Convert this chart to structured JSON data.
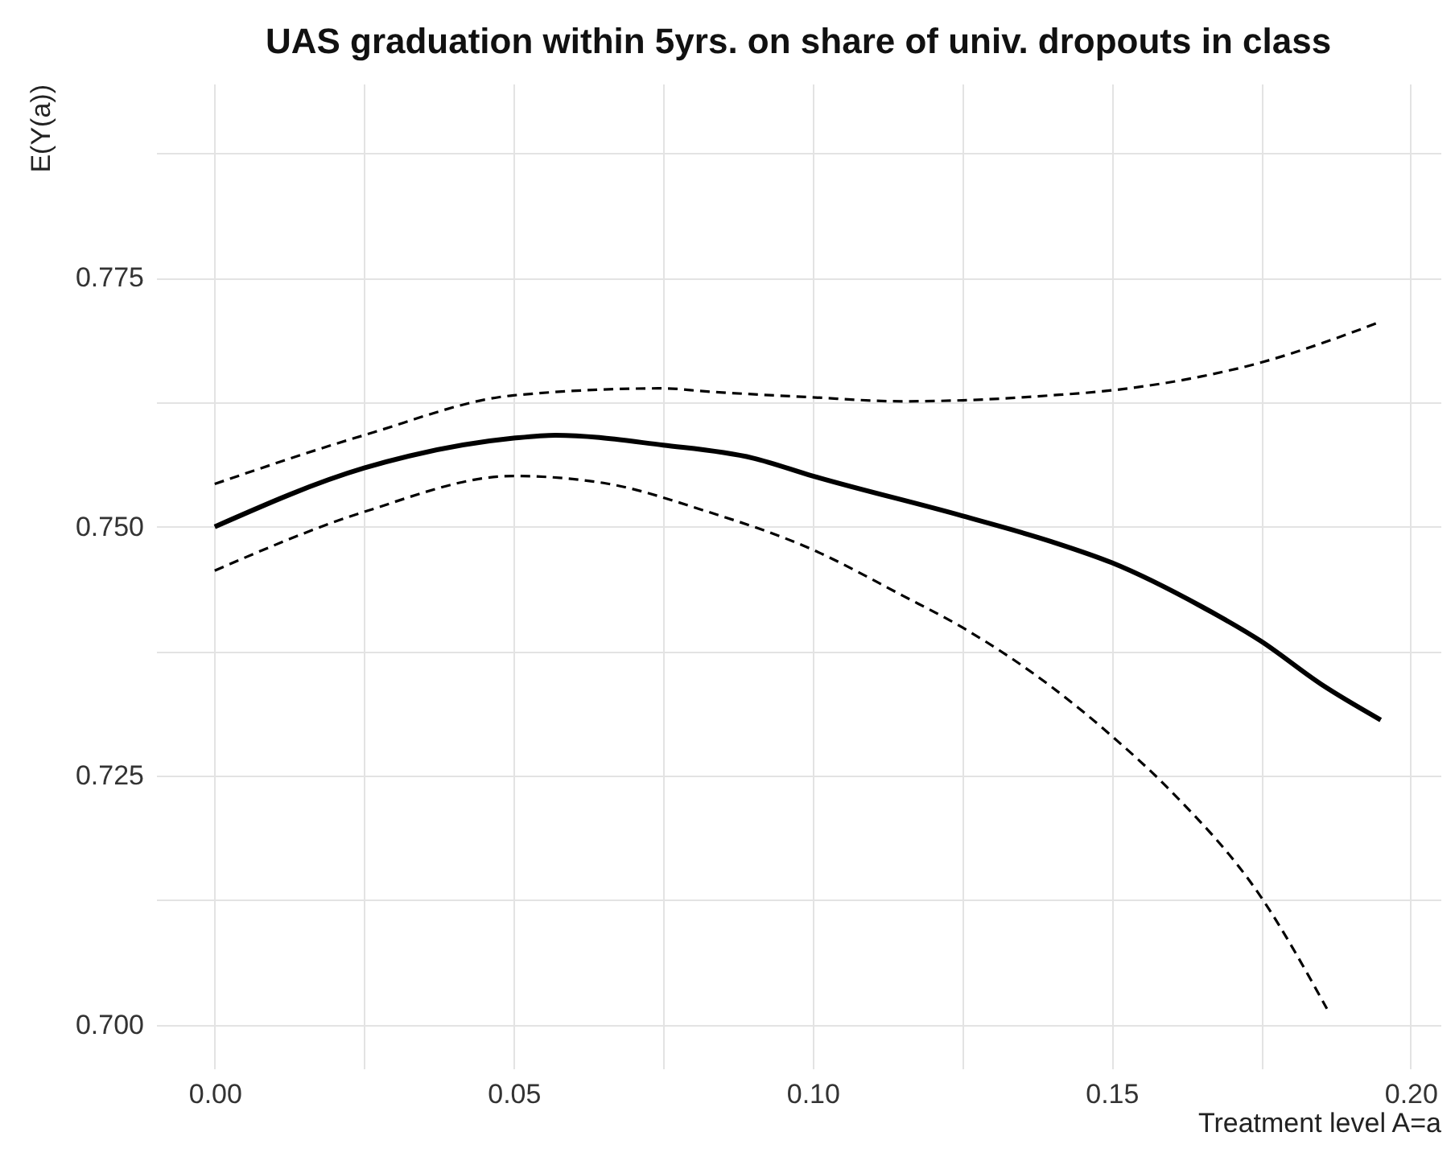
{
  "chart_data": {
    "type": "line",
    "title": "UAS graduation within 5yrs. on share of univ. dropouts in class",
    "xlabel": "Treatment level A=a",
    "ylabel": "E(Y(a))",
    "xlim": [
      -0.0098,
      0.205
    ],
    "ylim": [
      0.6956,
      0.7945
    ],
    "xticks": [
      {
        "value": 0,
        "label": "0.00"
      },
      {
        "value": 0.025,
        "label": null
      },
      {
        "value": 0.05,
        "label": "0.05"
      },
      {
        "value": 0.075,
        "label": null
      },
      {
        "value": 0.1,
        "label": "0.10"
      },
      {
        "value": 0.125,
        "label": null
      },
      {
        "value": 0.15,
        "label": "0.15"
      },
      {
        "value": 0.175,
        "label": null
      },
      {
        "value": 0.2,
        "label": "0.20"
      }
    ],
    "yticks": [
      {
        "value": 0.7,
        "label": "0.700"
      },
      {
        "value": 0.7125,
        "label": null
      },
      {
        "value": 0.725,
        "label": "0.725"
      },
      {
        "value": 0.7375,
        "label": null
      },
      {
        "value": 0.75,
        "label": "0.750"
      },
      {
        "value": 0.7625,
        "label": null
      },
      {
        "value": 0.775,
        "label": "0.775"
      },
      {
        "value": 0.7875,
        "label": null
      }
    ],
    "grid": true,
    "marker": "none",
    "series": [
      {
        "color": "#000000",
        "line_style": "solid",
        "x": [
          0,
          0.025,
          0.05,
          0.057,
          0.075,
          0.09,
          0.1,
          0.125,
          0.14,
          0.15,
          0.165,
          0.175,
          0.185,
          0.195
        ],
        "values": [
          0.75,
          0.7559,
          0.7589,
          0.7592,
          0.7582,
          0.7569,
          0.7551,
          0.7511,
          0.7485,
          0.7464,
          0.742,
          0.7385,
          0.7342,
          0.7306
        ]
      },
      {
        "color": "#000000",
        "line_style": "dashed",
        "x": [
          0,
          0.025,
          0.05,
          0.075,
          0.082,
          0.1,
          0.115,
          0.125,
          0.14,
          0.15,
          0.165,
          0.175,
          0.185,
          0.195
        ],
        "values": [
          0.7543,
          0.7592,
          0.7632,
          0.7639,
          0.7636,
          0.763,
          0.7626,
          0.7627,
          0.7632,
          0.7637,
          0.7651,
          0.7665,
          0.7684,
          0.7706
        ]
      },
      {
        "color": "#000000",
        "line_style": "dashed",
        "x": [
          0,
          0.025,
          0.05,
          0.065,
          0.082,
          0.1,
          0.115,
          0.125,
          0.14,
          0.15,
          0.16,
          0.175,
          0.186
        ],
        "values": [
          0.7456,
          0.7515,
          0.7551,
          0.7544,
          0.7516,
          0.7477,
          0.7431,
          0.7399,
          0.7339,
          0.729,
          0.7234,
          0.7128,
          0.7016
        ]
      }
    ]
  }
}
